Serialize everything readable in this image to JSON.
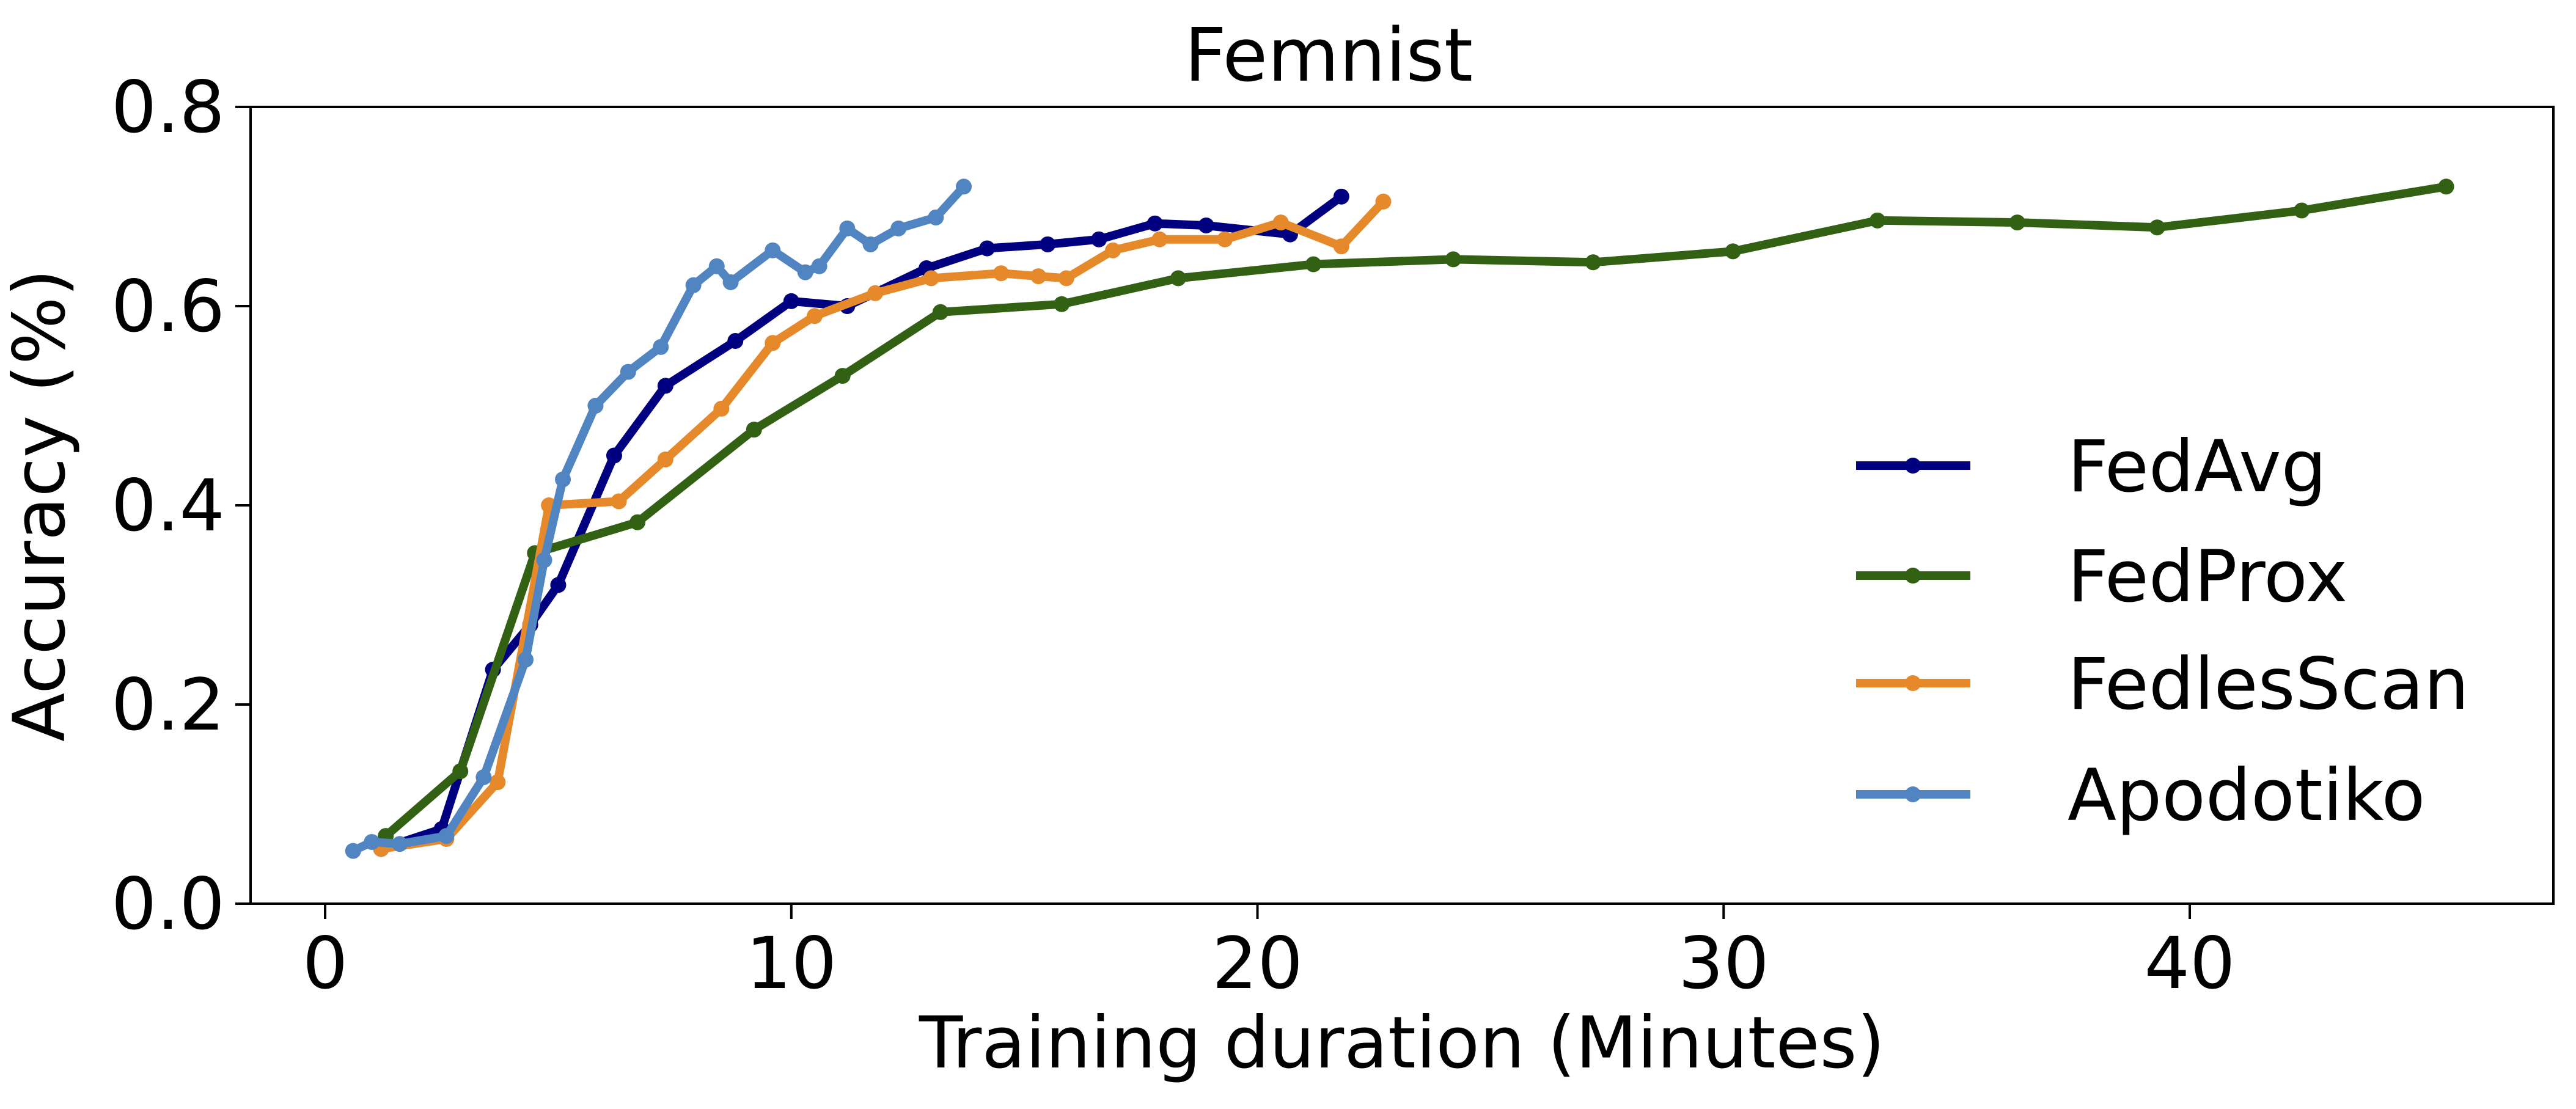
{
  "chart_data": {
    "type": "line",
    "title": "Femnist",
    "xlabel": "Training duration (Minutes)",
    "ylabel": "Accuracy (%)",
    "xlim": [
      -1.6,
      47.8
    ],
    "ylim": [
      0.0,
      0.8
    ],
    "xticks": [
      0,
      10,
      20,
      30,
      40
    ],
    "yticks": [
      0.0,
      0.2,
      0.4,
      0.6,
      0.8
    ],
    "xtick_labels": [
      "0",
      "10",
      "20",
      "30",
      "40"
    ],
    "ytick_labels": [
      "0.0",
      "0.2",
      "0.4",
      "0.6",
      "0.8"
    ],
    "grid": false,
    "legend_position": "right",
    "series": [
      {
        "name": "FedAvg",
        "color": "#000080",
        "x": [
          1.2,
          2.5,
          3.6,
          4.4,
          5.0,
          6.2,
          7.3,
          8.8,
          10.0,
          11.2,
          12.9,
          14.2,
          15.5,
          16.6,
          17.8,
          18.9,
          20.7,
          21.8
        ],
        "y": [
          0.055,
          0.075,
          0.235,
          0.28,
          0.32,
          0.45,
          0.52,
          0.565,
          0.605,
          0.6,
          0.638,
          0.658,
          0.662,
          0.667,
          0.683,
          0.681,
          0.672,
          0.71
        ]
      },
      {
        "name": "FedProx",
        "color": "#336114",
        "x": [
          1.3,
          2.9,
          4.5,
          6.7,
          9.2,
          11.1,
          13.2,
          15.8,
          18.3,
          21.2,
          24.2,
          27.2,
          30.2,
          33.3,
          36.3,
          39.3,
          42.4,
          45.5
        ],
        "y": [
          0.068,
          0.133,
          0.352,
          0.383,
          0.476,
          0.53,
          0.594,
          0.602,
          0.628,
          0.642,
          0.647,
          0.644,
          0.655,
          0.686,
          0.684,
          0.679,
          0.696,
          0.72
        ]
      },
      {
        "name": "FedlesScan",
        "color": "#E6892A",
        "x": [
          1.2,
          2.6,
          3.7,
          4.8,
          6.3,
          7.3,
          8.5,
          9.6,
          10.5,
          11.8,
          13.0,
          14.5,
          15.3,
          15.9,
          16.9,
          17.9,
          19.3,
          20.5,
          21.8,
          22.7
        ],
        "y": [
          0.055,
          0.065,
          0.122,
          0.4,
          0.404,
          0.446,
          0.497,
          0.563,
          0.59,
          0.613,
          0.628,
          0.633,
          0.63,
          0.628,
          0.656,
          0.667,
          0.667,
          0.684,
          0.66,
          0.705
        ]
      },
      {
        "name": "Apodotiko",
        "color": "#5085C2",
        "x": [
          0.6,
          1.0,
          1.6,
          2.6,
          3.4,
          4.3,
          4.7,
          5.1,
          5.8,
          6.5,
          7.2,
          7.9,
          8.4,
          8.7,
          9.6,
          10.3,
          10.6,
          11.2,
          11.7,
          12.3,
          13.1,
          13.7
        ],
        "y": [
          0.053,
          0.062,
          0.06,
          0.068,
          0.127,
          0.245,
          0.345,
          0.426,
          0.5,
          0.534,
          0.559,
          0.621,
          0.64,
          0.624,
          0.656,
          0.634,
          0.64,
          0.678,
          0.662,
          0.678,
          0.689,
          0.72
        ]
      }
    ]
  }
}
